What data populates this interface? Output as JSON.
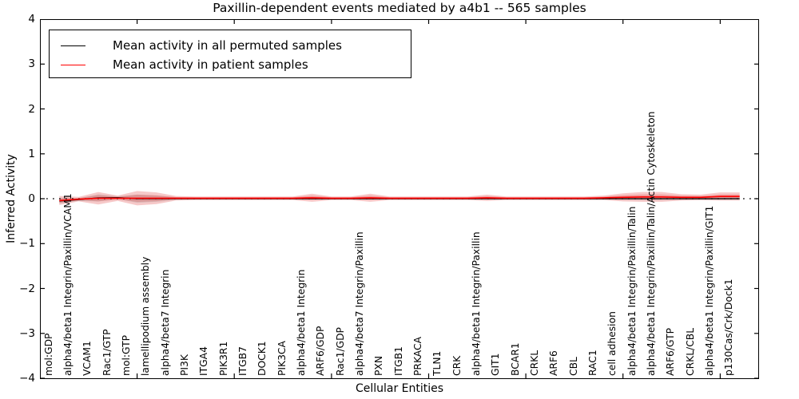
{
  "title": "Paxillin-dependent events mediated by a4b1 -- 565 samples",
  "legend": {
    "items": [
      {
        "label": "Mean activity in all permuted samples",
        "color": "#000000"
      },
      {
        "label": "Mean activity in patient samples",
        "color": "#ff0000"
      }
    ]
  },
  "chart_data": {
    "type": "line",
    "title": "Paxillin-dependent events mediated by a4b1 -- 565 samples",
    "xlabel": "Cellular Entities",
    "ylabel": "Inferred Activity",
    "ylim": [
      -4,
      4
    ],
    "yticks": [
      4,
      3,
      2,
      1,
      0,
      -1,
      -2,
      -3,
      -4
    ],
    "xtick_every": 5,
    "grid": false,
    "legend_position": "upper left",
    "zero_reference_line": "black dotted at y=0",
    "colors": {
      "permuted": "#000000",
      "patient": "#ff0000",
      "band": "#dd3c3c",
      "permuted_band": "#777777"
    },
    "categories": [
      "mol:GDP",
      "alpha4/beta1 Integrin/Paxillin/VCAM1",
      "VCAM1",
      "Rac1/GTP",
      "mol:GTP",
      "lamellipodium assembly",
      "alpha4/beta7 Integrin",
      "PI3K",
      "ITGA4",
      "PIK3R1",
      "ITGB7",
      "DOCK1",
      "PIK3CA",
      "alpha4/beta1 Integrin",
      "ARF6/GDP",
      "Rac1/GDP",
      "alpha4/beta7 Integrin/Paxillin",
      "PXN",
      "ITGB1",
      "PRKACA",
      "TLN1",
      "CRK",
      "alpha4/beta1 Integrin/Paxillin",
      "GIT1",
      "BCAR1",
      "CRKL",
      "ARF6",
      "CBL",
      "RAC1",
      "cell adhesion",
      "alpha4/beta1 Integrin/Paxillin/Talin",
      "alpha4/beta1 Integrin/Paxillin/Talin/Actin Cytoskeleton",
      "ARF6/GTP",
      "CRKL/CBL",
      "alpha4/beta1 Integrin/Paxillin/GIT1",
      "p130Cas/Crk/Dock1"
    ],
    "series": [
      {
        "name": "Mean activity in all permuted samples",
        "color": "#000000",
        "style": "solid",
        "width": 1.3,
        "values": [
          -0.05,
          -0.02,
          0.02,
          0.025,
          0.0,
          0.0,
          0.0,
          0.0,
          0.0,
          0.0,
          0.0,
          0.0,
          0.0,
          0.0,
          0.0,
          0.0,
          0.0,
          0.0,
          0.0,
          0.0,
          0.0,
          0.0,
          0.0,
          0.0,
          0.0,
          0.0,
          0.0,
          0.0,
          0.0,
          0.0,
          0.0,
          0.0,
          0.0,
          0.0,
          0.0,
          0.0
        ]
      },
      {
        "name": "Mean activity in patient samples",
        "color": "#ff0000",
        "style": "solid",
        "width": 1.6,
        "values": [
          -0.04,
          -0.01,
          0.01,
          0.01,
          0.01,
          0.01,
          0.01,
          0.01,
          0.01,
          0.01,
          0.01,
          0.01,
          0.01,
          0.02,
          0.01,
          0.01,
          0.02,
          0.01,
          0.01,
          0.01,
          0.01,
          0.01,
          0.02,
          0.01,
          0.01,
          0.01,
          0.01,
          0.01,
          0.02,
          0.03,
          0.04,
          0.04,
          0.03,
          0.03,
          0.05,
          0.05
        ]
      }
    ],
    "bands": [
      {
        "name": "patient-std-outer",
        "center_series": 1,
        "color": "#dd3c3c",
        "opacity": 0.28,
        "halfwidths": [
          0.1,
          0.05,
          0.14,
          0.06,
          0.16,
          0.13,
          0.05,
          0.04,
          0.04,
          0.04,
          0.04,
          0.04,
          0.04,
          0.09,
          0.04,
          0.04,
          0.09,
          0.04,
          0.04,
          0.04,
          0.04,
          0.04,
          0.07,
          0.04,
          0.04,
          0.04,
          0.04,
          0.04,
          0.05,
          0.09,
          0.11,
          0.11,
          0.07,
          0.06,
          0.09,
          0.09
        ]
      },
      {
        "name": "patient-std-inner",
        "center_series": 1,
        "color": "#dd3c3c",
        "opacity": 0.3,
        "halfwidths": [
          0.05,
          0.025,
          0.07,
          0.03,
          0.08,
          0.065,
          0.025,
          0.02,
          0.02,
          0.02,
          0.02,
          0.02,
          0.02,
          0.045,
          0.02,
          0.02,
          0.045,
          0.02,
          0.02,
          0.02,
          0.02,
          0.02,
          0.035,
          0.02,
          0.02,
          0.02,
          0.02,
          0.02,
          0.025,
          0.045,
          0.055,
          0.055,
          0.035,
          0.03,
          0.045,
          0.045
        ]
      },
      {
        "name": "permuted-std",
        "center_series": 0,
        "color": "#777777",
        "opacity": 0.18,
        "halfwidths": [
          0.06,
          0.03,
          0.08,
          0.03,
          0.09,
          0.07,
          0.03,
          0.02,
          0.02,
          0.02,
          0.02,
          0.02,
          0.02,
          0.02,
          0.02,
          0.02,
          0.02,
          0.02,
          0.02,
          0.02,
          0.02,
          0.02,
          0.02,
          0.02,
          0.02,
          0.02,
          0.02,
          0.02,
          0.02,
          0.03,
          0.04,
          0.04,
          0.03,
          0.03,
          0.03,
          0.03
        ]
      }
    ]
  }
}
